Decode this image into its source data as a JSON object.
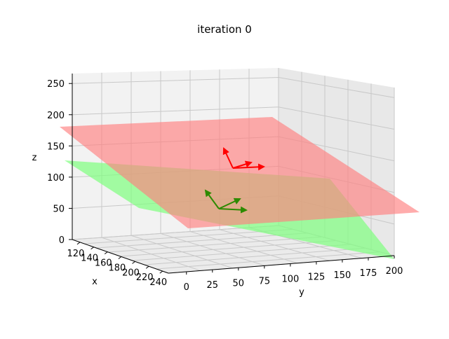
{
  "chart_data": {
    "type": "3d-surface",
    "title": "iteration 0",
    "xlabel": "x",
    "ylabel": "y",
    "zlabel": "z",
    "xticks": [
      "120",
      "140",
      "160",
      "180",
      "200",
      "220",
      "240"
    ],
    "yticks": [
      "0",
      "25",
      "50",
      "75",
      "100",
      "125",
      "150",
      "175",
      "200"
    ],
    "zticks": [
      "0",
      "50",
      "100",
      "150",
      "200",
      "250"
    ],
    "xlim": [
      110,
      250
    ],
    "ylim": [
      0,
      200
    ],
    "zlim": [
      0,
      250
    ],
    "grid": true,
    "colors": {
      "red_plane": "#ff7f7f",
      "green_plane": "#7fff7f",
      "red_arrows": "#ff0000",
      "green_arrows": "#2d8a00",
      "overlap": "#a0a060"
    }
  }
}
